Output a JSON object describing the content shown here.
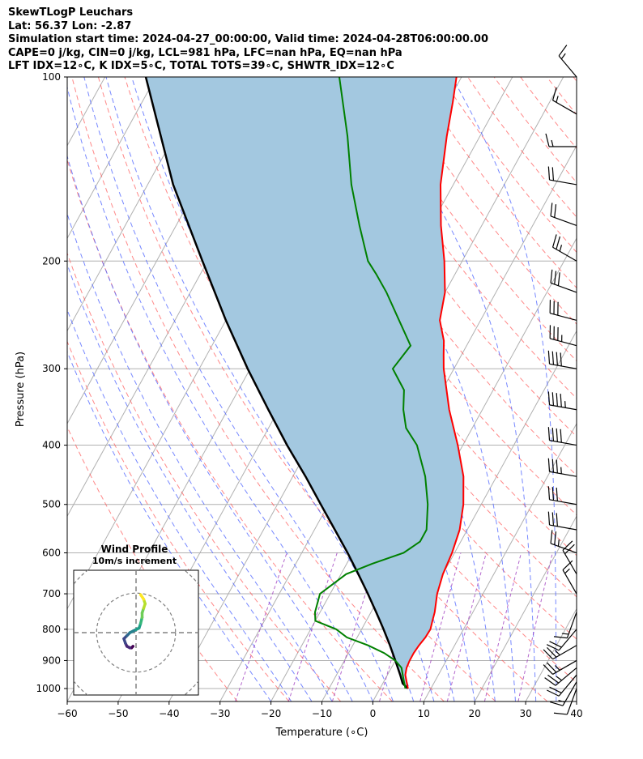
{
  "header": {
    "line1": "SkewTLogP Leuchars",
    "line2": "Lat: 56.37   Lon: -2.87",
    "line3": "Simulation start time: 2024-04-27_00:00:00, Valid time: 2024-04-28T06:00:00.00",
    "line4": "CAPE=0 j/kg, CIN=0 j/kg, LCL=981 hPa, LFC=nan hPa, EQ=nan hPa",
    "line5": "LFT IDX=12∘C, K IDX=5∘C, TOTAL TOTS=39∘C, SHWTR_IDX=12∘C"
  },
  "chart_data": {
    "type": "line",
    "skew": "skew-T log-p",
    "xlabel": "Temperature (∘C)",
    "ylabel": "Pressure (hPa)",
    "xlim": [
      -60,
      40
    ],
    "ylim": [
      1050,
      100
    ],
    "x_ticks": [
      "−60",
      "−50",
      "−40",
      "−30",
      "−20",
      "−10",
      "0",
      "10",
      "20",
      "30",
      "40"
    ],
    "x_tick_values": [
      -60,
      -50,
      -40,
      -30,
      -20,
      -10,
      0,
      10,
      20,
      30,
      40
    ],
    "y_ticks": [
      "100",
      "200",
      "300",
      "400",
      "500",
      "600",
      "700",
      "800",
      "900",
      "1000"
    ],
    "y_tick_values": [
      100,
      200,
      300,
      400,
      500,
      600,
      700,
      800,
      900,
      1000
    ],
    "grid": true,
    "colors": {
      "temperature": "#ff0000",
      "dewpoint": "#008000",
      "parcel": "#000000",
      "cin_fill": "#a3c8e0",
      "dry_adiabat": "#ff5555",
      "moist_adiabat": "#4a60ff",
      "mixing_ratio": "#a040c0",
      "isotherm": "#b0b0b0"
    },
    "temperature": {
      "pressure": [
        1000,
        975,
        950,
        925,
        900,
        875,
        850,
        825,
        800,
        775,
        750,
        700,
        650,
        600,
        550,
        500,
        450,
        400,
        350,
        300,
        285,
        270,
        250,
        225,
        200,
        175,
        150,
        125,
        110,
        100
      ],
      "temp": [
        5.5,
        4.5,
        3.5,
        3,
        2.8,
        2.8,
        3,
        3.4,
        3.5,
        3,
        2.5,
        1,
        0,
        -0.5,
        -1.5,
        -3.5,
        -6.5,
        -11,
        -16.5,
        -22,
        -23.5,
        -25,
        -28,
        -30,
        -33.5,
        -38,
        -42.5,
        -46.5,
        -49,
        -51
      ]
    },
    "dewpoint": {
      "pressure": [
        1000,
        975,
        950,
        925,
        900,
        875,
        850,
        825,
        800,
        775,
        750,
        700,
        650,
        625,
        600,
        575,
        550,
        500,
        450,
        400,
        375,
        350,
        325,
        300,
        275,
        250,
        225,
        210,
        200,
        175,
        150,
        125,
        100
      ],
      "dewpt": [
        5,
        4,
        3,
        2,
        0,
        -3,
        -7,
        -12,
        -15,
        -20,
        -21,
        -22,
        -19,
        -15,
        -10,
        -8,
        -8,
        -10.5,
        -14,
        -19,
        -23,
        -25.5,
        -27.5,
        -32,
        -31,
        -36,
        -41.5,
        -45.5,
        -48.5,
        -54,
        -60,
        -66,
        -74
      ]
    },
    "parcel": {
      "pressure": [
        1000,
        981,
        950,
        900,
        850,
        800,
        750,
        700,
        650,
        600,
        550,
        500,
        450,
        400,
        350,
        300,
        250,
        200,
        150,
        100
      ],
      "temp": [
        5.5,
        3.9,
        2.5,
        0,
        -2.7,
        -5.7,
        -9,
        -12.6,
        -16.6,
        -21,
        -26,
        -31.5,
        -37.5,
        -44.5,
        -52,
        -60.5,
        -70,
        -81,
        -95,
        -112
      ]
    },
    "wind_barbs": {
      "pressure": [
        1000,
        975,
        950,
        925,
        900,
        850,
        800,
        750,
        700,
        650,
        600,
        550,
        500,
        450,
        400,
        350,
        300,
        275,
        250,
        225,
        200,
        175,
        150,
        130,
        115,
        100
      ],
      "speed_kt": [
        10,
        15,
        20,
        25,
        25,
        25,
        20,
        15,
        15,
        20,
        25,
        30,
        30,
        35,
        40,
        45,
        40,
        35,
        30,
        30,
        25,
        20,
        20,
        15,
        15,
        15
      ],
      "direction_deg": [
        200,
        210,
        220,
        230,
        240,
        240,
        220,
        200,
        330,
        330,
        290,
        280,
        280,
        280,
        280,
        280,
        280,
        285,
        285,
        290,
        300,
        290,
        280,
        270,
        300,
        320
      ]
    },
    "hodograph": {
      "title": "Wind Profile",
      "subtitle": "10m/s increment",
      "u": [
        -1,
        -1.5,
        -2,
        -3,
        -3.5,
        -4,
        -3,
        -2,
        -1,
        0,
        1,
        1.5,
        2,
        2,
        2.5,
        3,
        2.5,
        1.5
      ],
      "v": [
        -4.5,
        -5,
        -5,
        -4.5,
        -3.5,
        -2,
        -1,
        0,
        0.5,
        1,
        1.5,
        3,
        5,
        6.5,
        8,
        9.5,
        11,
        12.5
      ]
    }
  }
}
